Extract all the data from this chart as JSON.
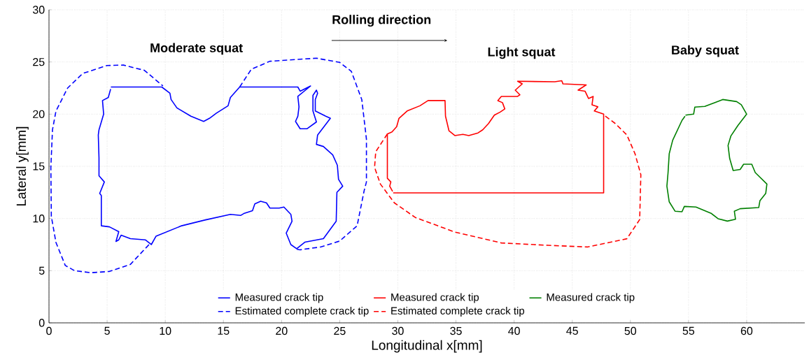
{
  "chart_data": {
    "type": "line",
    "xlabel": "Longitudinal x[mm]",
    "ylabel": "Lateral y[mm]",
    "xlim": [
      0,
      65
    ],
    "ylim": [
      0,
      30
    ],
    "xticks": [
      0,
      5,
      10,
      15,
      20,
      25,
      30,
      35,
      40,
      45,
      50,
      55,
      60
    ],
    "yticks": [
      0,
      5,
      10,
      15,
      20,
      25,
      30
    ],
    "grid": true,
    "legend": "bottom",
    "marker": "none",
    "annotations": [
      "Rolling direction",
      "Moderate squat",
      "Light squat",
      "Baby squat"
    ],
    "series": [
      {
        "name": "Measured crack tip",
        "color": "#0000ff",
        "line_style": "solid",
        "x": [
          5.32,
          9.7,
          10.4,
          10.5,
          11.0,
          12.2,
          13.3,
          13.8,
          14.4,
          15.4,
          15.6,
          16.4,
          21.4,
          21.6,
          22.5,
          21.4,
          21.5,
          21.4,
          21.2,
          21.6,
          22.2,
          23.0,
          22.7,
          22.7,
          23.0,
          23.1,
          22.9,
          22.9,
          23.8,
          24.2,
          23.1,
          23.0,
          23.6,
          24.4,
          24.8,
          24.9,
          25.26,
          24.76,
          24.7,
          23.6,
          22.0,
          21.3,
          20.8,
          20.4,
          20.9,
          20.8,
          20.2,
          19.8,
          19.0,
          18.7,
          18.2,
          17.7,
          17.5,
          16.8,
          16.5,
          15.6,
          13.4,
          11.4,
          9.2,
          8.8,
          8.3,
          7.0,
          6.2,
          6.0,
          5.76,
          6.0,
          5.2,
          4.5,
          4.5,
          4.36,
          4.76,
          4.3,
          4.3,
          4.24,
          4.3,
          4.7,
          4.6,
          5.1,
          5.3
        ],
        "values": [
          22.6,
          22.6,
          22.0,
          21.4,
          20.6,
          19.8,
          19.3,
          19.6,
          20.1,
          20.8,
          21.6,
          22.6,
          22.6,
          22.2,
          22.7,
          21.7,
          20.7,
          19.8,
          19.3,
          18.6,
          18.6,
          19.25,
          20.3,
          21.8,
          22.3,
          22.0,
          21.4,
          20.3,
          19.8,
          19.6,
          18.0,
          17.1,
          16.9,
          16.1,
          15.1,
          13.75,
          13.1,
          12.5,
          9.74,
          8.07,
          7.73,
          7.1,
          7.5,
          8.6,
          9.74,
          10.4,
          11.1,
          11.0,
          11.0,
          11.5,
          11.65,
          11.4,
          10.75,
          10.5,
          10.3,
          10.4,
          9.85,
          9.3,
          8.3,
          7.5,
          7.95,
          8.07,
          8.4,
          7.95,
          7.8,
          8.74,
          9.2,
          9.3,
          12.2,
          12.4,
          13.5,
          14.1,
          15.8,
          18.0,
          18.5,
          20.0,
          21.3,
          21.6,
          22.4
        ]
      },
      {
        "name": "Measured crack tip",
        "color": "#ff0000",
        "line_style": "solid",
        "x": [
          29.6,
          47.7,
          47.7,
          46.9,
          47.2,
          46.7,
          46.8,
          46.4,
          46.1,
          45.5,
          46.2,
          44.2,
          44.1,
          43.5,
          40.3,
          40.7,
          40.1,
          40.5,
          40.3,
          38.9,
          38.6,
          39.0,
          39.2,
          38.8,
          38.3,
          37.8,
          37.3,
          36.9,
          36.1,
          35.6,
          34.9,
          34.4,
          34.1,
          34.06,
          32.6,
          31.9,
          30.8,
          30.1,
          29.9,
          29.5,
          29.1,
          29.1,
          29.4,
          29.3,
          29.55
        ],
        "values": [
          12.45,
          12.45,
          20.0,
          20.3,
          20.7,
          20.9,
          21.7,
          21.5,
          22.2,
          22.3,
          22.8,
          22.9,
          23.2,
          23.1,
          23.15,
          22.9,
          22.3,
          21.85,
          21.7,
          21.7,
          21.3,
          21.1,
          20.5,
          20.2,
          19.9,
          19.1,
          18.5,
          18.2,
          17.95,
          18.06,
          17.95,
          18.4,
          19.8,
          21.3,
          21.3,
          20.8,
          20.3,
          19.6,
          18.8,
          18.3,
          18.1,
          13.85,
          13.5,
          13.1,
          12.6
        ]
      },
      {
        "name": "Measured crack tip",
        "color": "#008000",
        "line_style": "solid",
        "x": [
          54.74,
          55.44,
          55.54,
          56.4,
          57.24,
          57.94,
          59.14,
          59.54,
          60.0,
          59.24,
          58.64,
          58.4,
          58.54,
          58.84,
          59.44,
          59.74,
          60.44,
          60.74,
          61.74,
          61.64,
          61.14,
          61.04,
          59.44,
          58.94,
          59.04,
          58.34,
          57.54,
          56.94,
          55.64,
          54.64,
          54.44,
          53.84,
          53.34,
          53.14,
          53.24,
          53.34,
          53.64,
          54.44,
          54.7
        ],
        "values": [
          19.9,
          20.0,
          20.67,
          20.74,
          21.1,
          21.4,
          21.2,
          20.9,
          20.0,
          18.9,
          17.9,
          17.0,
          15.75,
          14.6,
          14.7,
          15.2,
          15.2,
          14.4,
          13.3,
          12.4,
          11.7,
          11.05,
          10.94,
          10.7,
          9.93,
          9.75,
          9.98,
          10.5,
          11.1,
          11.16,
          10.65,
          10.7,
          11.6,
          13.1,
          14.4,
          16.2,
          17.5,
          19.4,
          19.8
        ]
      },
      {
        "name": "Estimated complete crack tip",
        "color": "#0000ff",
        "line_style": "dashed",
        "x": [
          8.6,
          7.0,
          5.2,
          3.6,
          2.2,
          1.4,
          0.6,
          0.2,
          0.16,
          0.3,
          0.6,
          1.6,
          2.9,
          5.0,
          6.4,
          8.2,
          9.8,
          null,
          16.4,
          17.4,
          19.0,
          23.0,
          25.0,
          26.0,
          26.9,
          27.3,
          27.3,
          27.1,
          26.5,
          25.0,
          23.4,
          21.6,
          21.2
        ],
        "values": [
          7.5,
          5.6,
          4.93,
          4.8,
          5.0,
          5.5,
          7.7,
          10.2,
          14.9,
          18.5,
          20.3,
          22.5,
          23.9,
          24.66,
          24.7,
          24.2,
          22.7,
          null,
          22.6,
          24.3,
          25.07,
          25.36,
          24.96,
          24.1,
          21.4,
          17.6,
          13.5,
          12.65,
          9.3,
          7.84,
          7.28,
          7.0,
          7.06
        ]
      },
      {
        "name": "Estimated complete crack tip",
        "color": "#ff0000",
        "line_style": "dashed",
        "x": [
          29.1,
          28.1,
          28.0,
          28.5,
          29.7,
          31.5,
          34.9,
          38.9,
          42.9,
          46.3,
          49.7,
          50.8,
          50.9,
          50.4,
          49.7,
          48.7,
          47.7
        ],
        "values": [
          18.1,
          16.4,
          14.9,
          13.3,
          11.5,
          10.1,
          8.7,
          7.66,
          7.43,
          7.27,
          8.06,
          9.9,
          14.2,
          16.2,
          18.0,
          19.1,
          19.93
        ]
      }
    ]
  }
}
